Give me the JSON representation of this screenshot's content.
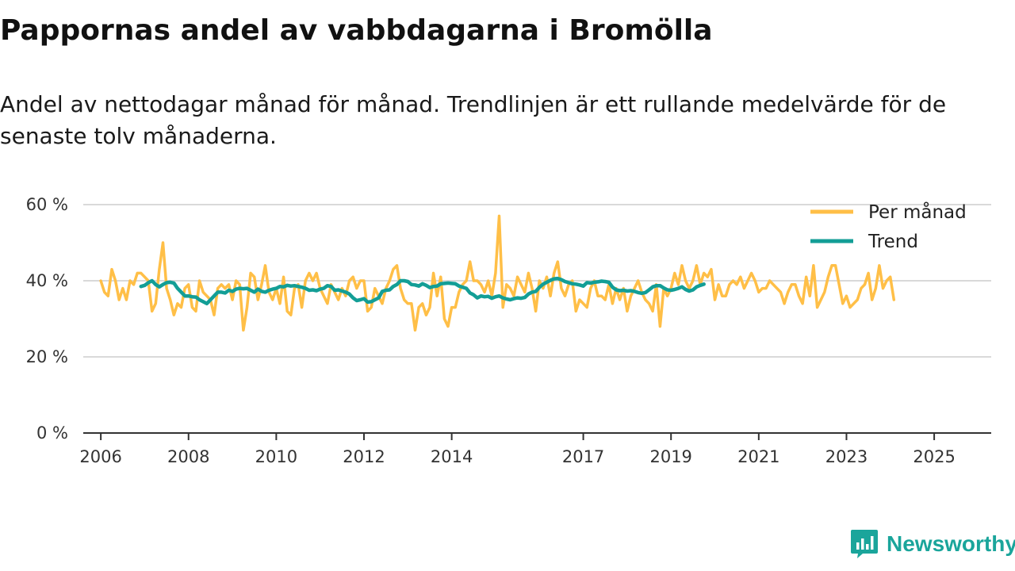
{
  "title": "Pappornas andel av vabbdagarna i Bromölla",
  "subtitle": "Andel av nettodagar månad för månad. Trendlinjen är ett rullande medelvärde för de senaste tolv månaderna.",
  "brand": "Newsworthy",
  "colors": {
    "monthly": "#ffbf47",
    "trend": "#139e96",
    "brand": "#1aa59b"
  },
  "chart_data": {
    "type": "line",
    "title": "Pappornas andel av vabbdagarna i Bromölla",
    "xlabel": "",
    "ylabel": "",
    "ylim": [
      0,
      60
    ],
    "xlim": [
      2005.6,
      2026.3
    ],
    "y_ticks": [
      0,
      20,
      40,
      60
    ],
    "y_tick_labels": [
      "0 %",
      "20 %",
      "40 %",
      "60 %"
    ],
    "x_ticks": [
      2006,
      2008,
      2010,
      2012,
      2014,
      2017,
      2019,
      2021,
      2023,
      2025
    ],
    "x_tick_labels": [
      "2006",
      "2008",
      "2010",
      "2012",
      "2014",
      "2017",
      "2019",
      "2021",
      "2023",
      "2025"
    ],
    "grid": true,
    "legend_position": "top-right",
    "series": [
      {
        "name": "Per månad",
        "start": 2006.0,
        "step": 0.08333,
        "values": [
          40,
          37,
          36,
          43,
          40,
          35,
          38,
          35,
          40,
          39,
          42,
          42,
          41,
          40,
          32,
          34,
          43,
          50,
          38,
          35,
          31,
          34,
          33,
          38,
          39,
          33,
          32,
          40,
          37,
          36,
          35,
          31,
          38,
          39,
          38,
          39,
          35,
          40,
          39,
          27,
          33,
          42,
          41,
          35,
          39,
          44,
          37,
          35,
          38,
          34,
          41,
          32,
          31,
          38,
          39,
          33,
          40,
          42,
          40,
          42,
          38,
          36,
          34,
          39,
          37,
          35,
          38,
          36,
          40,
          41,
          38,
          40,
          40,
          32,
          33,
          38,
          36,
          34,
          38,
          40,
          43,
          44,
          38,
          35,
          34,
          34,
          27,
          33,
          34,
          31,
          33,
          42,
          36,
          41,
          30,
          28,
          33,
          33,
          37,
          39,
          40,
          45,
          40,
          40,
          39,
          37,
          40,
          36,
          42,
          57,
          33,
          39,
          38,
          36,
          41,
          39,
          37,
          42,
          38,
          32,
          40,
          38,
          41,
          36,
          42,
          45,
          38,
          36,
          39,
          40,
          32,
          35,
          34,
          33,
          38,
          40,
          36,
          36,
          35,
          39,
          34,
          38,
          35,
          38,
          32,
          36,
          38,
          40,
          37,
          35,
          34,
          32,
          39,
          28,
          38,
          36,
          38,
          42,
          39,
          44,
          40,
          38,
          40,
          44,
          39,
          42,
          41,
          43,
          35,
          39,
          36,
          36,
          39,
          40,
          39,
          41,
          38,
          40,
          42,
          40,
          37,
          38,
          38,
          40,
          39,
          38,
          37,
          34,
          37,
          39,
          39,
          36,
          34,
          41,
          36,
          44,
          33,
          35,
          37,
          41,
          44,
          44,
          39,
          34,
          36,
          33,
          34,
          35,
          38,
          39,
          42,
          35,
          38,
          44,
          38,
          40,
          41,
          35
        ],
        "color": "#ffbf47"
      },
      {
        "name": "Trend",
        "start": 2006.917,
        "step": 0.08333,
        "values": [
          38.5,
          38.8,
          39.5,
          40,
          39,
          38.4,
          39,
          39.5,
          39.6,
          39.4,
          38,
          37,
          36,
          36,
          35.8,
          35.7,
          35,
          34.5,
          34,
          35,
          36,
          37,
          37,
          36.8,
          37.5,
          37.2,
          37.8,
          38,
          37.9,
          38,
          37.5,
          37,
          37.8,
          37.2,
          37,
          37.5,
          37.8,
          38,
          38.5,
          38.4,
          38.8,
          38.6,
          38.7,
          38.5,
          38.3,
          38,
          37.5,
          37.6,
          37.4,
          37.8,
          38,
          38.7,
          38.5,
          37.5,
          37.6,
          37.3,
          37,
          36.5,
          35.5,
          34.8,
          35,
          35.3,
          34.4,
          34.5,
          35,
          35.5,
          37.2,
          37.5,
          37.6,
          38.5,
          39,
          40,
          40,
          39.8,
          39,
          38.9,
          38.6,
          39.2,
          38.8,
          38.2,
          38.5,
          38.6,
          39.2,
          39.3,
          39.4,
          39.3,
          39.2,
          38.6,
          38.3,
          38,
          36.8,
          36.3,
          35.5,
          36,
          35.8,
          35.9,
          35.4,
          35.8,
          36,
          35.5,
          35.2,
          35,
          35.3,
          35.5,
          35.4,
          35.6,
          36.5,
          37,
          37.2,
          38.3,
          39.1,
          39.6,
          40.1,
          40.5,
          40.6,
          40.3,
          39.8,
          39.5,
          39.2,
          39.1,
          38.9,
          38.6,
          39.5,
          39.4,
          39.6,
          39.7,
          39.9,
          39.8,
          39.6,
          38.3,
          37.6,
          37.4,
          37.5,
          37.3,
          37.4,
          37.2,
          36.9,
          36.7,
          36.9,
          37.6,
          38.4,
          38.7,
          38.7,
          38.1,
          37.6,
          37.5,
          37.7,
          38,
          38.4,
          37.7,
          37.3,
          37.6,
          38.4,
          38.8,
          39.1
        ],
        "color": "#139e96"
      }
    ]
  }
}
